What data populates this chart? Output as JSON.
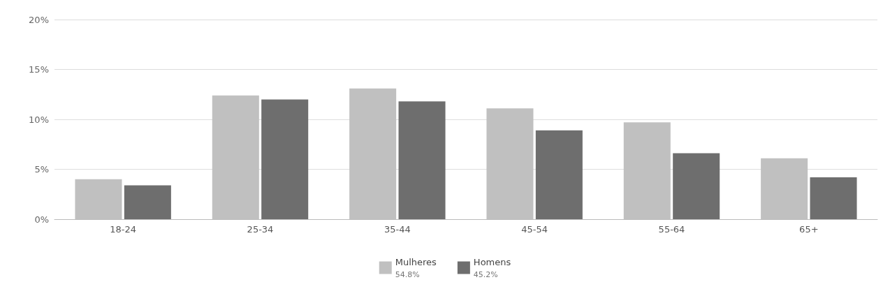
{
  "chart_data": {
    "type": "bar",
    "categories": [
      "18-24",
      "25-34",
      "35-44",
      "45-54",
      "55-64",
      "65+"
    ],
    "series": [
      {
        "name": "Mulheres",
        "color": "#c0c0c0",
        "values": [
          4.0,
          12.4,
          13.1,
          11.1,
          9.7,
          6.1
        ]
      },
      {
        "name": "Homens",
        "color": "#6e6e6e",
        "values": [
          3.4,
          12.0,
          11.8,
          8.9,
          6.6,
          4.2
        ]
      }
    ],
    "ylim": [
      0,
      20
    ],
    "yticks": [
      {
        "value": 0,
        "label": "0%"
      },
      {
        "value": 5,
        "label": "5%"
      },
      {
        "value": 10,
        "label": "10%"
      },
      {
        "value": 15,
        "label": "15%"
      },
      {
        "value": 20,
        "label": "20%"
      }
    ],
    "grid": "y",
    "legend": "bottom",
    "annotations": [
      "54.8%",
      "45.2%"
    ]
  }
}
